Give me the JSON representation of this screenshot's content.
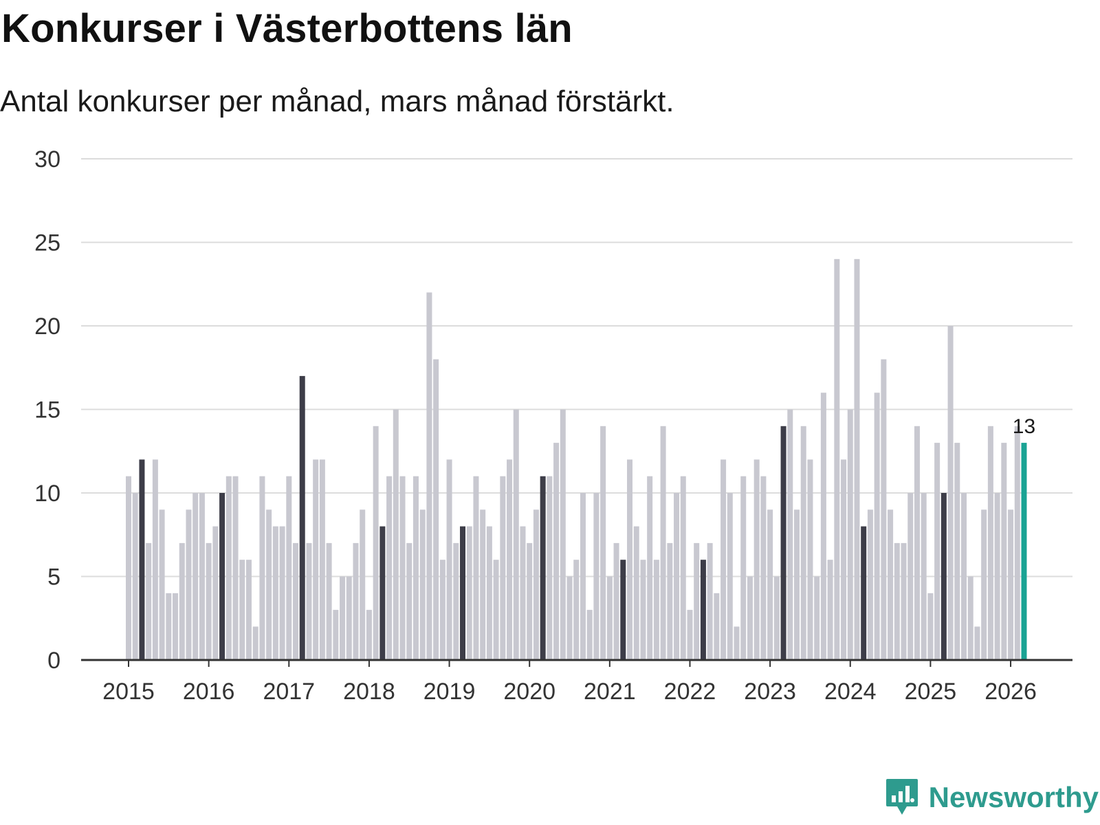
{
  "title": "Konkurser i Västerbottens län",
  "subtitle": "Antal konkurser per månad, mars månad förstärkt.",
  "brand": {
    "name": "Newsworthy",
    "icon": "newsworthy-logo-icon"
  },
  "colors": {
    "regular": "#c8c8d0",
    "march": "#3d3d48",
    "latest": "#1aa394",
    "grid": "#dcdcdc",
    "axis": "#333333"
  },
  "chart_data": {
    "type": "bar",
    "title": "Konkurser i Västerbottens län",
    "subtitle": "Antal konkurser per månad, mars månad förstärkt.",
    "xlabel": "",
    "ylabel": "",
    "ylim": [
      0,
      30
    ],
    "yticks": [
      0,
      5,
      10,
      15,
      20,
      25,
      30
    ],
    "grid": true,
    "start": "2015-01",
    "highlight": "mars",
    "x_tick_labels": [
      "2015",
      "2016",
      "2017",
      "2018",
      "2019",
      "2020",
      "2021",
      "2022",
      "2023",
      "2024",
      "2025",
      "2026"
    ],
    "values": [
      11,
      10,
      12,
      7,
      12,
      9,
      4,
      4,
      7,
      9,
      10,
      10,
      7,
      8,
      10,
      11,
      11,
      6,
      6,
      2,
      11,
      9,
      8,
      8,
      11,
      7,
      17,
      7,
      12,
      12,
      7,
      3,
      5,
      5,
      7,
      9,
      3,
      14,
      8,
      11,
      15,
      11,
      7,
      11,
      9,
      22,
      18,
      6,
      12,
      7,
      8,
      8,
      11,
      9,
      8,
      6,
      11,
      12,
      15,
      8,
      7,
      9,
      11,
      11,
      13,
      15,
      5,
      6,
      10,
      3,
      10,
      14,
      5,
      7,
      6,
      12,
      8,
      6,
      11,
      6,
      14,
      7,
      10,
      11,
      3,
      7,
      6,
      7,
      4,
      12,
      10,
      2,
      11,
      5,
      12,
      11,
      9,
      5,
      14,
      15,
      9,
      14,
      12,
      5,
      16,
      6,
      24,
      12,
      15,
      24,
      8,
      9,
      16,
      18,
      9,
      7,
      7,
      10,
      14,
      10,
      4,
      13,
      10,
      20,
      13,
      10,
      5,
      2,
      9,
      14,
      10,
      13,
      9,
      14,
      13
    ],
    "latest_label": "13"
  }
}
